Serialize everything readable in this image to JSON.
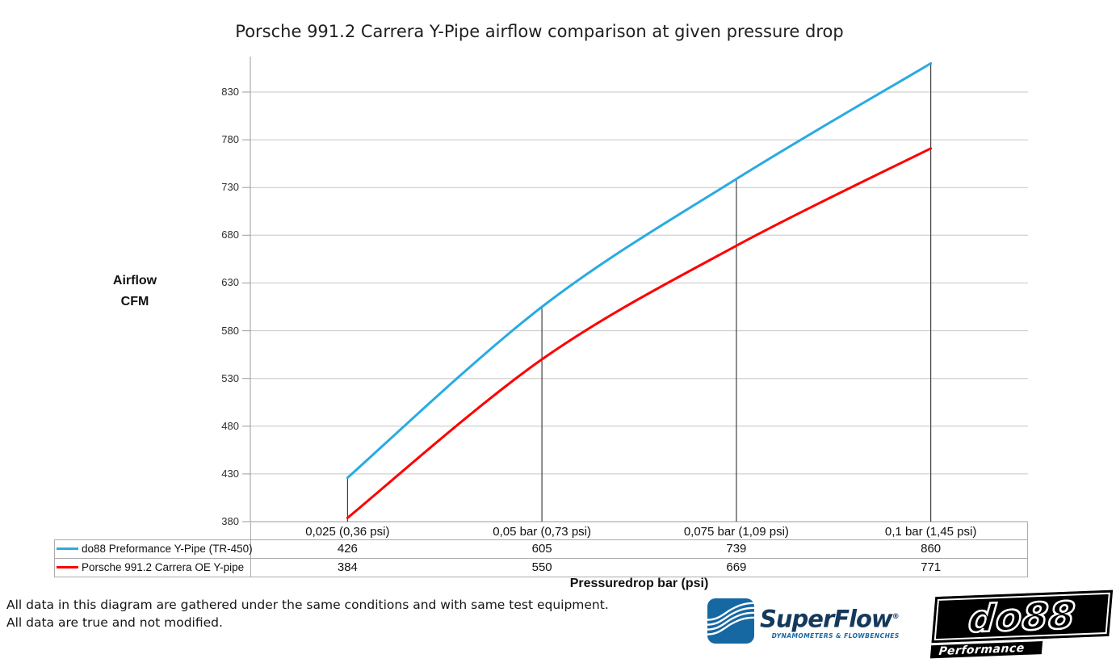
{
  "title": "Porsche 991.2 Carrera Y-Pipe airflow comparison at given pressure drop",
  "chart_data": {
    "type": "line",
    "categories": [
      "0,025 (0,36 psi)",
      "0,05 bar (0,73 psi)",
      "0,075 bar (1,09 psi)",
      "0,1 bar (1,45 psi)"
    ],
    "series": [
      {
        "name": "do88 Preformance Y-Pipe (TR-450)",
        "color": "#29abe2",
        "values": [
          426,
          605,
          739,
          860
        ]
      },
      {
        "name": "Porsche 991.2 Carrera OE Y-pipe",
        "color": "#ff0000",
        "values": [
          384,
          550,
          669,
          771
        ]
      }
    ],
    "ylabel_lines": [
      "Airflow",
      "CFM"
    ],
    "xlabel": "Pressuredrop bar (psi)",
    "ylim": [
      380,
      830
    ],
    "yticks": [
      380,
      430,
      480,
      530,
      580,
      630,
      680,
      730,
      780,
      830
    ],
    "grid": "horizontal",
    "legend_position": "table-left-of-data-rows",
    "drop_lines": true
  },
  "footnote": {
    "line1": "All data in this diagram are gathered under the same conditions and with same test equipment.",
    "line2": "All data are true and not modified."
  },
  "logos": {
    "superflow": {
      "brand": "SuperFlow",
      "registered_mark": "®",
      "tagline": "DYNAMOMETERS & FLOWBENCHES",
      "icon_color": "#1668a3",
      "text_color": "#15395c"
    },
    "do88": {
      "brand": "do88",
      "tagline": "Performance"
    }
  },
  "colors": {
    "gridline": "#c6c6c6",
    "axis": "#9b9b9b",
    "drop_line": "#404040",
    "table_border": "#ababab"
  }
}
